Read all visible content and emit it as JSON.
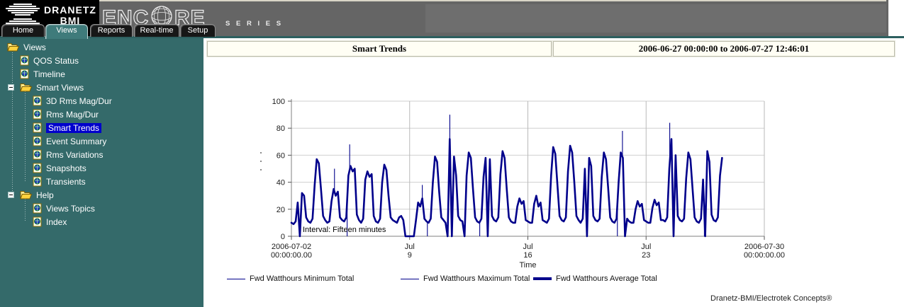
{
  "window": {
    "brand_primary": "DRANETZ",
    "brand_secondary": "BMI",
    "product": "ENCORE",
    "product_series": "S E R I E S",
    "copyright": "Dranetz-BMI/Electrotek Concepts®"
  },
  "tabs": [
    {
      "label": "Home",
      "active": false
    },
    {
      "label": "Views",
      "active": true
    },
    {
      "label": "Reports",
      "active": false
    },
    {
      "label": "Real-time",
      "active": false
    },
    {
      "label": "Setup",
      "active": false
    }
  ],
  "sidebar": {
    "items": [
      {
        "label": "Views",
        "level": 0,
        "icon": "folder-open-icon",
        "expander": false,
        "selected": false
      },
      {
        "label": "QOS Status",
        "level": 1,
        "icon": "document-globe-icon",
        "expander": false,
        "selected": false
      },
      {
        "label": "Timeline",
        "level": 1,
        "icon": "document-globe-icon",
        "expander": false,
        "selected": false
      },
      {
        "label": "Smart Views",
        "level": 1,
        "icon": "folder-open-icon",
        "expander": true,
        "selected": false
      },
      {
        "label": "3D Rms Mag/Dur",
        "level": 2,
        "icon": "document-globe-icon",
        "expander": false,
        "selected": false
      },
      {
        "label": "Rms Mag/Dur",
        "level": 2,
        "icon": "document-globe-icon",
        "expander": false,
        "selected": false
      },
      {
        "label": "Smart Trends",
        "level": 2,
        "icon": "document-globe-icon",
        "expander": false,
        "selected": true
      },
      {
        "label": "Event Summary",
        "level": 2,
        "icon": "document-globe-icon",
        "expander": false,
        "selected": false
      },
      {
        "label": "Rms Variations",
        "level": 2,
        "icon": "document-globe-icon",
        "expander": false,
        "selected": false
      },
      {
        "label": "Snapshots",
        "level": 2,
        "icon": "document-globe-icon",
        "expander": false,
        "selected": false
      },
      {
        "label": "Transients",
        "level": 2,
        "icon": "document-globe-icon",
        "expander": false,
        "selected": false
      },
      {
        "label": "Help",
        "level": 1,
        "icon": "folder-open-icon",
        "expander": true,
        "selected": false
      },
      {
        "label": "Views Topics",
        "level": 2,
        "icon": "document-globe-icon",
        "expander": false,
        "selected": false
      },
      {
        "label": "Index",
        "level": 2,
        "icon": "document-globe-icon",
        "expander": false,
        "selected": false
      }
    ]
  },
  "header": {
    "view_title": "Smart Trends",
    "date_range": "2006-06-27 00:00:00 to 2006-07-27 12:46:01"
  },
  "chart_data": {
    "type": "line",
    "title": "Smart Trends",
    "xlabel": "Time",
    "ylabel": "",
    "interval_note": "Interval: Fifteen minutes",
    "x_axis_days_range": [
      0,
      28
    ],
    "x_start_label": "2006-07-02 00:00:00.00",
    "x_end_label": "2006-07-30 00:00:00.00",
    "x_ticks": [
      {
        "day": 0,
        "line1": "2006-07-02",
        "line2": "00:00:00.00"
      },
      {
        "day": 7,
        "line1": "Jul",
        "line2": "9"
      },
      {
        "day": 14,
        "line1": "Jul",
        "line2": "16"
      },
      {
        "day": 21,
        "line1": "Jul",
        "line2": "23"
      },
      {
        "day": 28,
        "line1": "2006-07-30",
        "line2": "00:00:00.00"
      }
    ],
    "ylim": [
      0,
      100
    ],
    "y_ticks": [
      0,
      20,
      40,
      60,
      80,
      100
    ],
    "grid": true,
    "legend_position": "bottom",
    "line_color": "#00008b",
    "series": [
      {
        "name": "Fwd Watthours Minimum Total",
        "style": "thin",
        "dip_to_zero_days": [
          3.3,
          8.05,
          11.15,
          19.3,
          24.45
        ]
      },
      {
        "name": "Fwd Watthours Maximum Total",
        "style": "thin",
        "spikes": [
          [
            2.55,
            50
          ],
          [
            3.45,
            68
          ],
          [
            7.75,
            38
          ],
          [
            9.38,
            90
          ],
          [
            19.6,
            78
          ],
          [
            22.4,
            84
          ]
        ]
      },
      {
        "name": "Fwd Watthours Average Total",
        "style": "thick",
        "start_day": 0,
        "step_days": 0.125,
        "values": [
          10,
          9,
          11,
          25,
          0,
          32,
          30,
          14,
          11,
          10,
          13,
          38,
          57,
          54,
          35,
          15,
          12,
          10,
          11,
          26,
          35,
          30,
          33,
          14,
          12,
          11,
          14,
          45,
          52,
          48,
          50,
          16,
          12,
          10,
          13,
          42,
          48,
          44,
          46,
          15,
          11,
          10,
          13,
          40,
          53,
          49,
          30,
          14,
          12,
          11,
          10,
          14,
          15,
          12,
          0,
          0,
          0,
          0,
          0,
          12,
          25,
          22,
          28,
          13,
          11,
          10,
          13,
          40,
          59,
          55,
          33,
          14,
          12,
          10,
          0,
          72,
          0,
          59,
          45,
          15,
          12,
          11,
          0,
          45,
          62,
          58,
          35,
          14,
          11,
          10,
          13,
          44,
          58,
          0,
          57,
          15,
          12,
          11,
          14,
          46,
          63,
          58,
          35,
          14,
          11,
          10,
          10,
          22,
          28,
          24,
          26,
          12,
          11,
          10,
          10,
          24,
          30,
          22,
          25,
          12,
          11,
          10,
          13,
          45,
          66,
          61,
          38,
          15,
          12,
          11,
          14,
          48,
          67,
          62,
          40,
          15,
          12,
          10,
          13,
          50,
          0,
          58,
          52,
          15,
          12,
          11,
          13,
          44,
          62,
          57,
          36,
          14,
          11,
          10,
          13,
          40,
          62,
          58,
          0,
          13,
          11,
          10,
          10,
          20,
          26,
          22,
          24,
          12,
          11,
          10,
          10,
          21,
          27,
          23,
          25,
          12,
          12,
          11,
          14,
          50,
          72,
          0,
          60,
          15,
          12,
          11,
          13,
          43,
          62,
          57,
          35,
          14,
          11,
          10,
          13,
          42,
          0,
          63,
          55,
          16,
          12,
          11,
          14,
          45,
          58
        ]
      }
    ]
  },
  "colors": {
    "sidebar_teal": "#346a6a",
    "topbar_gray": "#656565",
    "selected_blue": "#0000cc",
    "chart_navy": "#00008b",
    "active_tab_teal": "#3f7b7b"
  }
}
